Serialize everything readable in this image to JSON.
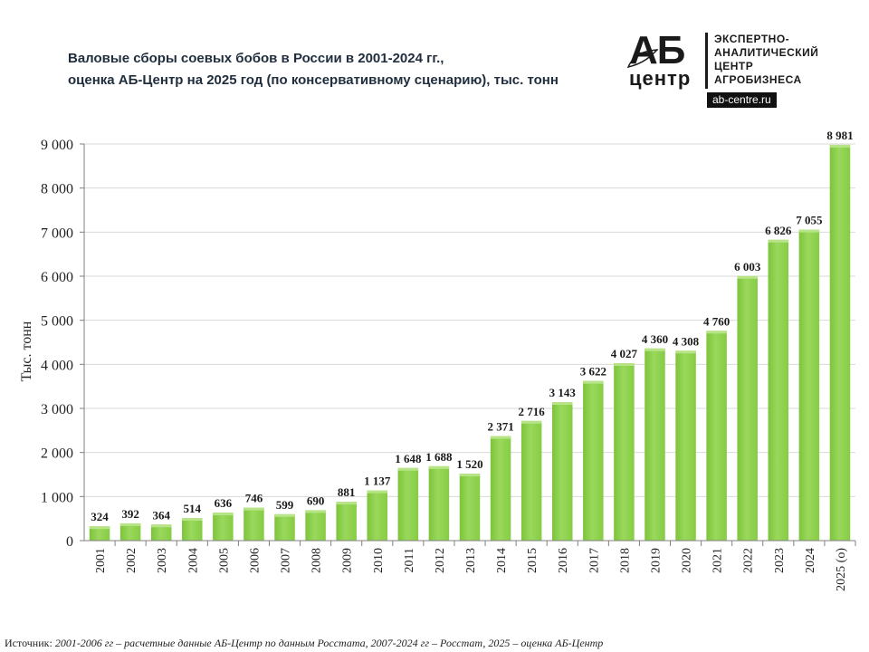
{
  "title_lines": [
    "Валовые сборы соевых бобов в России в 2001-2024 гг.,",
    "оценка АБ-Центр на 2025 год (по консервативному сценарию), тыс. тонн"
  ],
  "logo": {
    "abbr": "АБ",
    "word": "центр",
    "lines": [
      "ЭКСПЕРТНО-",
      "АНАЛИТИЧЕСКИЙ",
      "ЦЕНТР",
      "АГРОБИЗНЕСА"
    ],
    "url": "ab-centre.ru"
  },
  "source": {
    "label": "Источник:",
    "text": "2001-2006 гг – расчетные данные АБ-Центр по данным Росстата, 2007-2024 гг – Росстат, 2025 – оценка АБ-Центр"
  },
  "colors": {
    "bar": "#8ccf48",
    "bar_highlight": "#b6e486",
    "grid": "#d9d9d9",
    "axis": "#808080"
  },
  "chart_data": {
    "type": "bar",
    "title": "Валовые сборы соевых бобов в России в 2001-2024 гг., оценка АБ-Центр на 2025 год (по консервативному сценарию), тыс. тонн",
    "xlabel": "",
    "ylabel": "Тыс. тонн",
    "ylim": [
      0,
      9000
    ],
    "yticks": [
      0,
      1000,
      2000,
      3000,
      4000,
      5000,
      6000,
      7000,
      8000,
      9000
    ],
    "ytick_labels": [
      "0",
      "1 000",
      "2 000",
      "3 000",
      "4 000",
      "5 000",
      "6 000",
      "7 000",
      "8 000",
      "9 000"
    ],
    "grid": true,
    "categories": [
      "2001",
      "2002",
      "2003",
      "2004",
      "2005",
      "2006",
      "2007",
      "2008",
      "2009",
      "2010",
      "2011",
      "2012",
      "2013",
      "2014",
      "2015",
      "2016",
      "2017",
      "2018",
      "2019",
      "2020",
      "2021",
      "2022",
      "2023",
      "2024",
      "2025 (о)"
    ],
    "values": [
      324,
      392,
      364,
      514,
      636,
      746,
      599,
      690,
      881,
      1137,
      1648,
      1688,
      1520,
      2371,
      2716,
      3143,
      3622,
      4027,
      4360,
      4308,
      4760,
      6003,
      6826,
      7055,
      8981
    ],
    "labels": [
      "324",
      "392",
      "364",
      "514",
      "636",
      "746",
      "599",
      "690",
      "881",
      "1 137",
      "1 648",
      "1 688",
      "1 520",
      "2 371",
      "2 716",
      "3 143",
      "3 622",
      "4 027",
      "4 360",
      "4 308",
      "4 760",
      "6 003",
      "6 826",
      "7 055",
      "8 981"
    ]
  }
}
